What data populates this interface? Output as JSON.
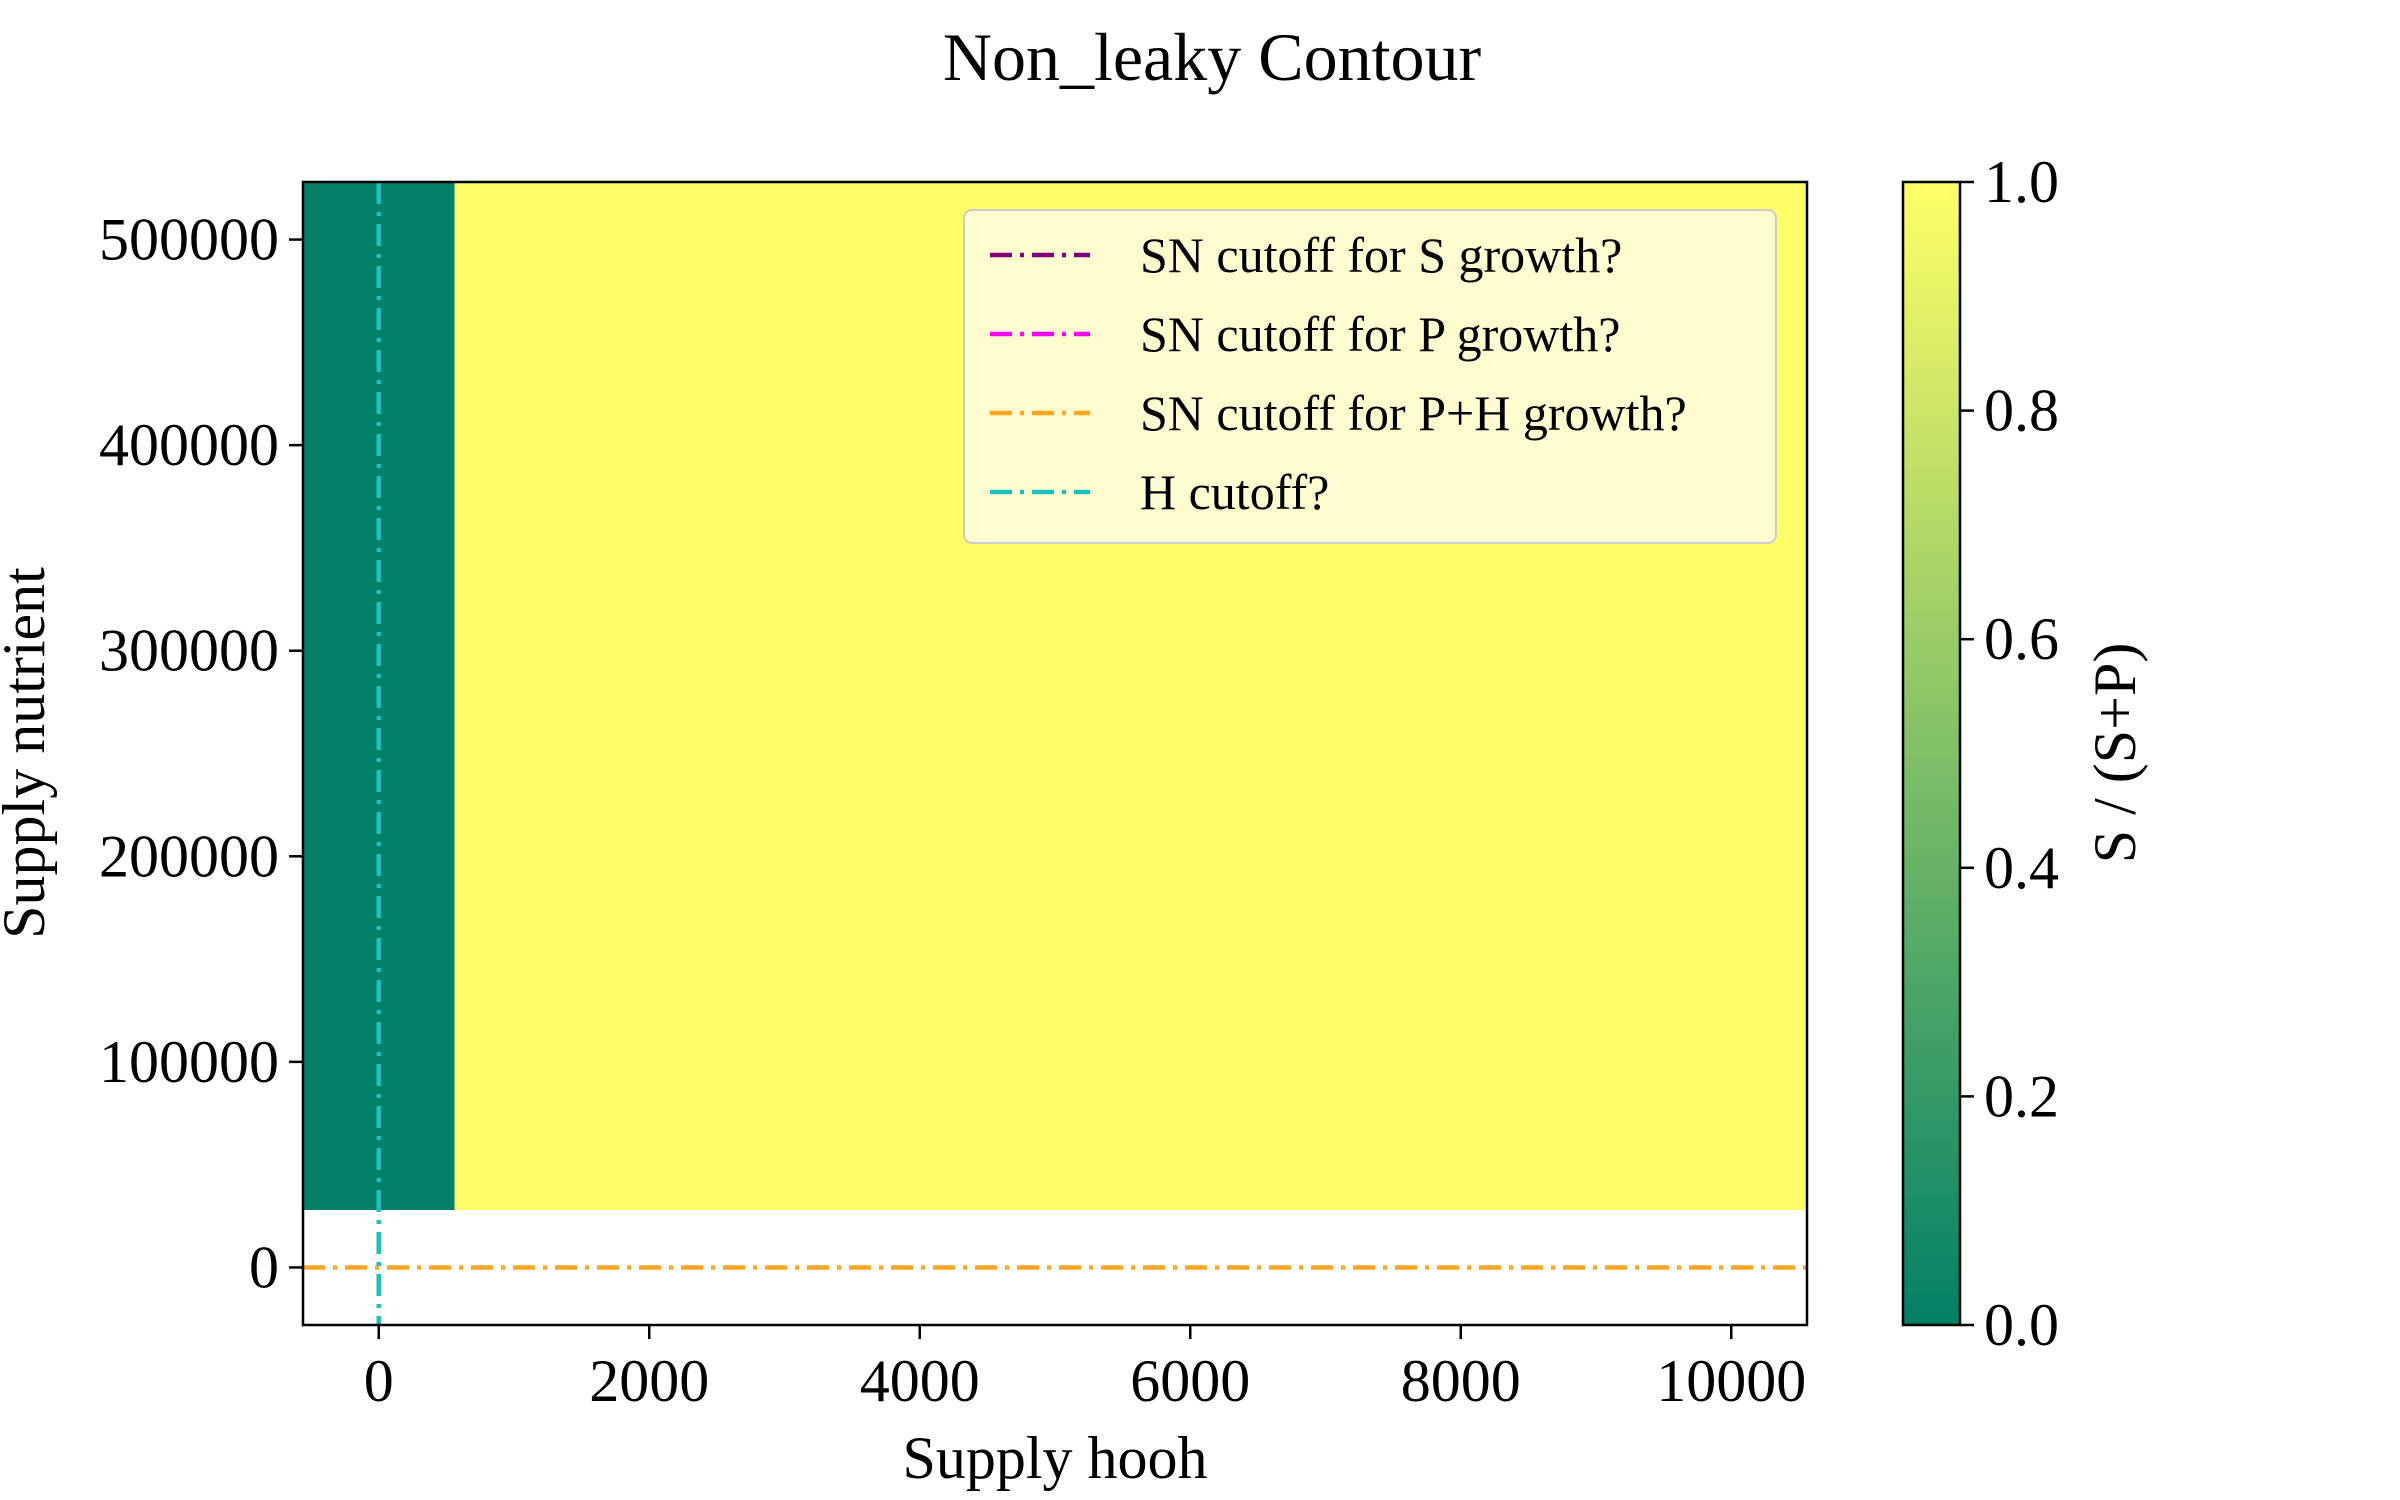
{
  "chart_data": {
    "type": "heatmap",
    "title": "Non_leaky Contour",
    "xlabel": "Supply hooh",
    "ylabel": "Supply nutrient",
    "xlim": [
      -560,
      10560
    ],
    "ylim": [
      -28000,
      528000
    ],
    "xticks": [
      0,
      2000,
      4000,
      6000,
      8000,
      10000
    ],
    "xtick_labels": [
      "0",
      "2000",
      "4000",
      "6000",
      "8000",
      "10000"
    ],
    "yticks": [
      0,
      100000,
      200000,
      300000,
      400000,
      500000
    ],
    "ytick_labels": [
      "0",
      "100000",
      "200000",
      "300000",
      "400000",
      "500000"
    ],
    "regions": [
      {
        "x": [
          -560,
          560
        ],
        "y": [
          28000,
          528000
        ],
        "value": 0.0
      },
      {
        "x": [
          560,
          10560
        ],
        "y": [
          28000,
          528000
        ],
        "value": 1.0
      }
    ],
    "lines": [
      {
        "name": "SN cutoff for S growth?",
        "orientation": "horizontal",
        "value": 0,
        "color": "#800080",
        "style": "dashdot",
        "visible": false
      },
      {
        "name": "SN cutoff for P growth?",
        "orientation": "horizontal",
        "value": 0,
        "color": "#ff00ff",
        "style": "dashdot",
        "visible": false
      },
      {
        "name": "SN cutoff for P+H growth?",
        "orientation": "horizontal",
        "value": 0,
        "color": "#ffa520",
        "style": "dashdot",
        "visible": true
      },
      {
        "name": "H cutoff?",
        "orientation": "vertical",
        "value": 0,
        "color": "#1ec0c0",
        "style": "dashdot",
        "visible": true
      }
    ],
    "legend": {
      "position": "upper right",
      "entries": [
        {
          "label": "SN cutoff for S growth?",
          "color": "#800080"
        },
        {
          "label": "SN cutoff for P growth?",
          "color": "#ff00ff"
        },
        {
          "label": "SN cutoff for P+H growth?",
          "color": "#ffa520"
        },
        {
          "label": "H cutoff?",
          "color": "#1ec0c0"
        }
      ]
    },
    "colorbar": {
      "label": "S / (S+P)",
      "colormap": "summer",
      "range": [
        0.0,
        1.0
      ],
      "ticks": [
        0.0,
        0.2,
        0.4,
        0.6,
        0.8,
        1.0
      ],
      "tick_labels": [
        "0.0",
        "0.2",
        "0.4",
        "0.6",
        "0.8",
        "1.0"
      ],
      "color_low": "#008066",
      "color_high": "#ffff66"
    },
    "grid": false
  }
}
